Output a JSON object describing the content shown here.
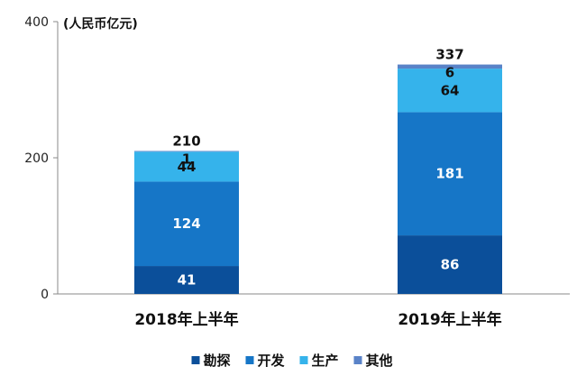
{
  "chart_data": {
    "type": "bar",
    "stacked": true,
    "unit_label": "(人民币亿元)",
    "categories": [
      "2018年上半年",
      "2019年上半年"
    ],
    "series": [
      {
        "name": "勘探",
        "values": [
          41,
          86
        ],
        "color": "#0B4F9A",
        "label_color": "#ffffff"
      },
      {
        "name": "开发",
        "values": [
          124,
          181
        ],
        "color": "#1676C7",
        "label_color": "#ffffff"
      },
      {
        "name": "生产",
        "values": [
          44,
          64
        ],
        "color": "#35B3EB",
        "label_color": "#111111"
      },
      {
        "name": "其他",
        "values": [
          1,
          6
        ],
        "color": "#5A83C8",
        "label_color": "#111111"
      }
    ],
    "totals": [
      210,
      337
    ],
    "ylim": [
      0,
      400
    ],
    "yticks": [
      0,
      200,
      400
    ],
    "legend_position": "bottom",
    "grid": false
  }
}
